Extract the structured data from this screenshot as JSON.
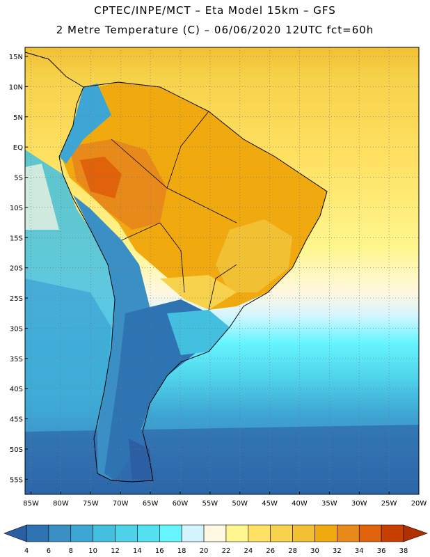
{
  "header": {
    "title_line1": "CPTEC/INPE/MCT –  Eta Model 15km – GFS",
    "title_line2": "2 Metre Temperature (C) – 06/06/2020 12UTC fct=60h"
  },
  "map": {
    "lat_labels": [
      "15N",
      "10N",
      "5N",
      "EQ",
      "5S",
      "10S",
      "15S",
      "20S",
      "25S",
      "30S",
      "35S",
      "40S",
      "45S",
      "50S",
      "55S"
    ],
    "lon_labels": [
      "85W",
      "80W",
      "75W",
      "70W",
      "65W",
      "60W",
      "55W",
      "50W",
      "45W",
      "40W",
      "35W",
      "30W",
      "25W",
      "20W"
    ],
    "lat_range": [
      -57.5,
      16.5
    ],
    "lon_range": [
      -86,
      -20
    ]
  },
  "colorbar": {
    "tick_labels": [
      "4",
      "6",
      "8",
      "10",
      "12",
      "14",
      "16",
      "18",
      "20",
      "22",
      "24",
      "26",
      "28",
      "30",
      "32",
      "34",
      "36",
      "38"
    ],
    "colors": [
      "#2c5ea3",
      "#2e73b2",
      "#3a8fc4",
      "#3ea6d4",
      "#43bfe0",
      "#4fd3ea",
      "#54e2f2",
      "#66f5ff",
      "#d4f5ff",
      "#fff8e2",
      "#fff68f",
      "#ffe264",
      "#f7d24c",
      "#f2c033",
      "#f0aa10",
      "#e88a1a",
      "#e0620a",
      "#c84000",
      "#b03000"
    ]
  }
}
